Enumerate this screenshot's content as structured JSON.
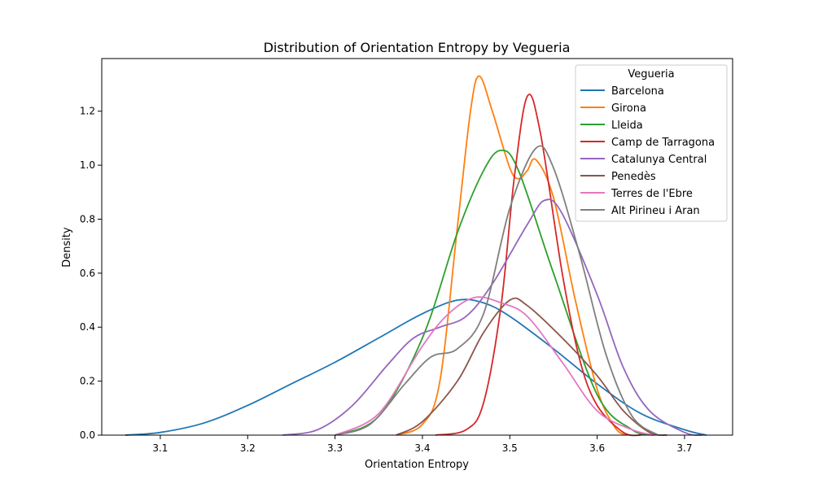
{
  "chart_data": {
    "type": "line",
    "title": "Distribution of Orientation Entropy by Vegueria",
    "xlabel": "Orientation Entropy",
    "ylabel": "Density",
    "xlim": [
      3.033,
      3.755
    ],
    "ylim": [
      0,
      1.395
    ],
    "xticks": [
      3.1,
      3.2,
      3.3,
      3.4,
      3.5,
      3.6,
      3.7
    ],
    "yticks": [
      0.0,
      0.2,
      0.4,
      0.6,
      0.8,
      1.0,
      1.2
    ],
    "grid": false,
    "legend": {
      "title": "Vegueria",
      "position": "top-right"
    },
    "series": [
      {
        "name": "Barcelona",
        "color": "#1f77b4",
        "points": [
          [
            3.06,
            0.0
          ],
          [
            3.1,
            0.01
          ],
          [
            3.15,
            0.045
          ],
          [
            3.2,
            0.11
          ],
          [
            3.25,
            0.19
          ],
          [
            3.3,
            0.27
          ],
          [
            3.35,
            0.36
          ],
          [
            3.4,
            0.45
          ],
          [
            3.44,
            0.5
          ],
          [
            3.47,
            0.49
          ],
          [
            3.5,
            0.44
          ],
          [
            3.55,
            0.32
          ],
          [
            3.6,
            0.19
          ],
          [
            3.65,
            0.08
          ],
          [
            3.7,
            0.02
          ],
          [
            3.725,
            0.0
          ]
        ]
      },
      {
        "name": "Girona",
        "color": "#ff7f0e",
        "points": [
          [
            3.37,
            0.0
          ],
          [
            3.4,
            0.04
          ],
          [
            3.42,
            0.2
          ],
          [
            3.44,
            0.77
          ],
          [
            3.455,
            1.2
          ],
          [
            3.465,
            1.33
          ],
          [
            3.48,
            1.2
          ],
          [
            3.5,
            0.99
          ],
          [
            3.51,
            0.95
          ],
          [
            3.52,
            0.98
          ],
          [
            3.53,
            1.02
          ],
          [
            3.55,
            0.88
          ],
          [
            3.575,
            0.5
          ],
          [
            3.6,
            0.17
          ],
          [
            3.62,
            0.03
          ],
          [
            3.633,
            0.0
          ]
        ]
      },
      {
        "name": "Lleida",
        "color": "#2ca02c",
        "points": [
          [
            3.3,
            0.0
          ],
          [
            3.35,
            0.07
          ],
          [
            3.4,
            0.36
          ],
          [
            3.44,
            0.75
          ],
          [
            3.47,
            0.98
          ],
          [
            3.49,
            1.055
          ],
          [
            3.51,
            0.98
          ],
          [
            3.55,
            0.6
          ],
          [
            3.6,
            0.15
          ],
          [
            3.64,
            0.02
          ],
          [
            3.665,
            0.0
          ]
        ]
      },
      {
        "name": "Camp de Tarragona",
        "color": "#d62728",
        "points": [
          [
            3.415,
            0.0
          ],
          [
            3.45,
            0.02
          ],
          [
            3.47,
            0.12
          ],
          [
            3.49,
            0.48
          ],
          [
            3.505,
            0.95
          ],
          [
            3.52,
            1.255
          ],
          [
            3.535,
            1.12
          ],
          [
            3.56,
            0.6
          ],
          [
            3.58,
            0.28
          ],
          [
            3.6,
            0.11
          ],
          [
            3.63,
            0.01
          ],
          [
            3.65,
            0.0
          ]
        ]
      },
      {
        "name": "Catalunya Central",
        "color": "#9467bd",
        "points": [
          [
            3.24,
            0.0
          ],
          [
            3.28,
            0.02
          ],
          [
            3.32,
            0.11
          ],
          [
            3.36,
            0.26
          ],
          [
            3.39,
            0.36
          ],
          [
            3.42,
            0.4
          ],
          [
            3.45,
            0.44
          ],
          [
            3.48,
            0.56
          ],
          [
            3.52,
            0.78
          ],
          [
            3.54,
            0.87
          ],
          [
            3.56,
            0.82
          ],
          [
            3.6,
            0.52
          ],
          [
            3.63,
            0.25
          ],
          [
            3.66,
            0.09
          ],
          [
            3.7,
            0.01
          ],
          [
            3.72,
            0.0
          ]
        ]
      },
      {
        "name": "Penedès",
        "color": "#8c564b",
        "points": [
          [
            3.37,
            0.0
          ],
          [
            3.4,
            0.05
          ],
          [
            3.44,
            0.2
          ],
          [
            3.47,
            0.38
          ],
          [
            3.5,
            0.5
          ],
          [
            3.52,
            0.48
          ],
          [
            3.56,
            0.36
          ],
          [
            3.6,
            0.22
          ],
          [
            3.63,
            0.09
          ],
          [
            3.66,
            0.01
          ],
          [
            3.68,
            0.0
          ]
        ]
      },
      {
        "name": "Terres de l'Ebre",
        "color": "#e377c2",
        "points": [
          [
            3.3,
            0.0
          ],
          [
            3.35,
            0.08
          ],
          [
            3.4,
            0.33
          ],
          [
            3.43,
            0.45
          ],
          [
            3.46,
            0.51
          ],
          [
            3.49,
            0.49
          ],
          [
            3.52,
            0.44
          ],
          [
            3.56,
            0.27
          ],
          [
            3.6,
            0.09
          ],
          [
            3.64,
            0.02
          ],
          [
            3.665,
            0.0
          ]
        ]
      },
      {
        "name": "Alt Pirineu i Aran",
        "color": "#7f7f7f",
        "points": [
          [
            3.3,
            0.0
          ],
          [
            3.34,
            0.04
          ],
          [
            3.38,
            0.19
          ],
          [
            3.41,
            0.29
          ],
          [
            3.44,
            0.32
          ],
          [
            3.47,
            0.45
          ],
          [
            3.5,
            0.84
          ],
          [
            3.53,
            1.063
          ],
          [
            3.55,
            0.99
          ],
          [
            3.58,
            0.67
          ],
          [
            3.61,
            0.3
          ],
          [
            3.64,
            0.07
          ],
          [
            3.67,
            0.0
          ]
        ]
      }
    ]
  }
}
